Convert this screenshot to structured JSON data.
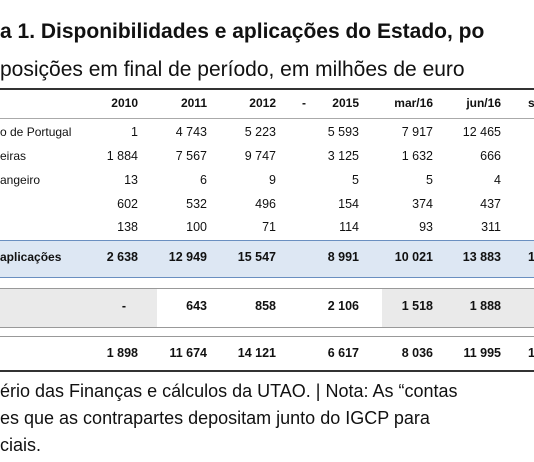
{
  "title": "a 1. Disponibilidades e aplicações do Estado, po",
  "subtitle": "posições em final de período, em milhões de euro",
  "table": {
    "header": [
      "2010",
      "2011",
      "2012",
      "-",
      "2015",
      "mar/16",
      "jun/16",
      "s"
    ],
    "rows": [
      {
        "label": "o de Portugal",
        "cells": [
          "1",
          "4 743",
          "5 223",
          "5 593",
          "7 917",
          "12 465"
        ]
      },
      {
        "label": "eiras",
        "cells": [
          "1 884",
          "7 567",
          "9 747",
          "3 125",
          "1 632",
          "666"
        ]
      },
      {
        "label": "angeiro",
        "cells": [
          "13",
          "6",
          "9",
          "5",
          "5",
          "4"
        ]
      },
      {
        "cells": [
          "602",
          "532",
          "496",
          "154",
          "374",
          "437"
        ]
      },
      {
        "cells": [
          "138",
          "100",
          "71",
          "114",
          "93",
          "311"
        ]
      },
      {
        "label": "aplicações",
        "cells": [
          "2 638",
          "12 949",
          "15 547",
          "8 991",
          "10 021",
          "13 883",
          "1"
        ]
      },
      {
        "cells": [
          "-",
          "643",
          "858",
          "2 106",
          "1 518",
          "1 888"
        ]
      },
      {
        "cells": [
          "1 898",
          "11 674",
          "14 121",
          "6 617",
          "8 036",
          "11 995",
          "1"
        ]
      }
    ]
  },
  "footer": [
    "ério das Finanças e cálculos da UTAO. | Nota: As “contas",
    "es que as contrapartes depositam junto do IGCP para",
    "ciais."
  ]
}
